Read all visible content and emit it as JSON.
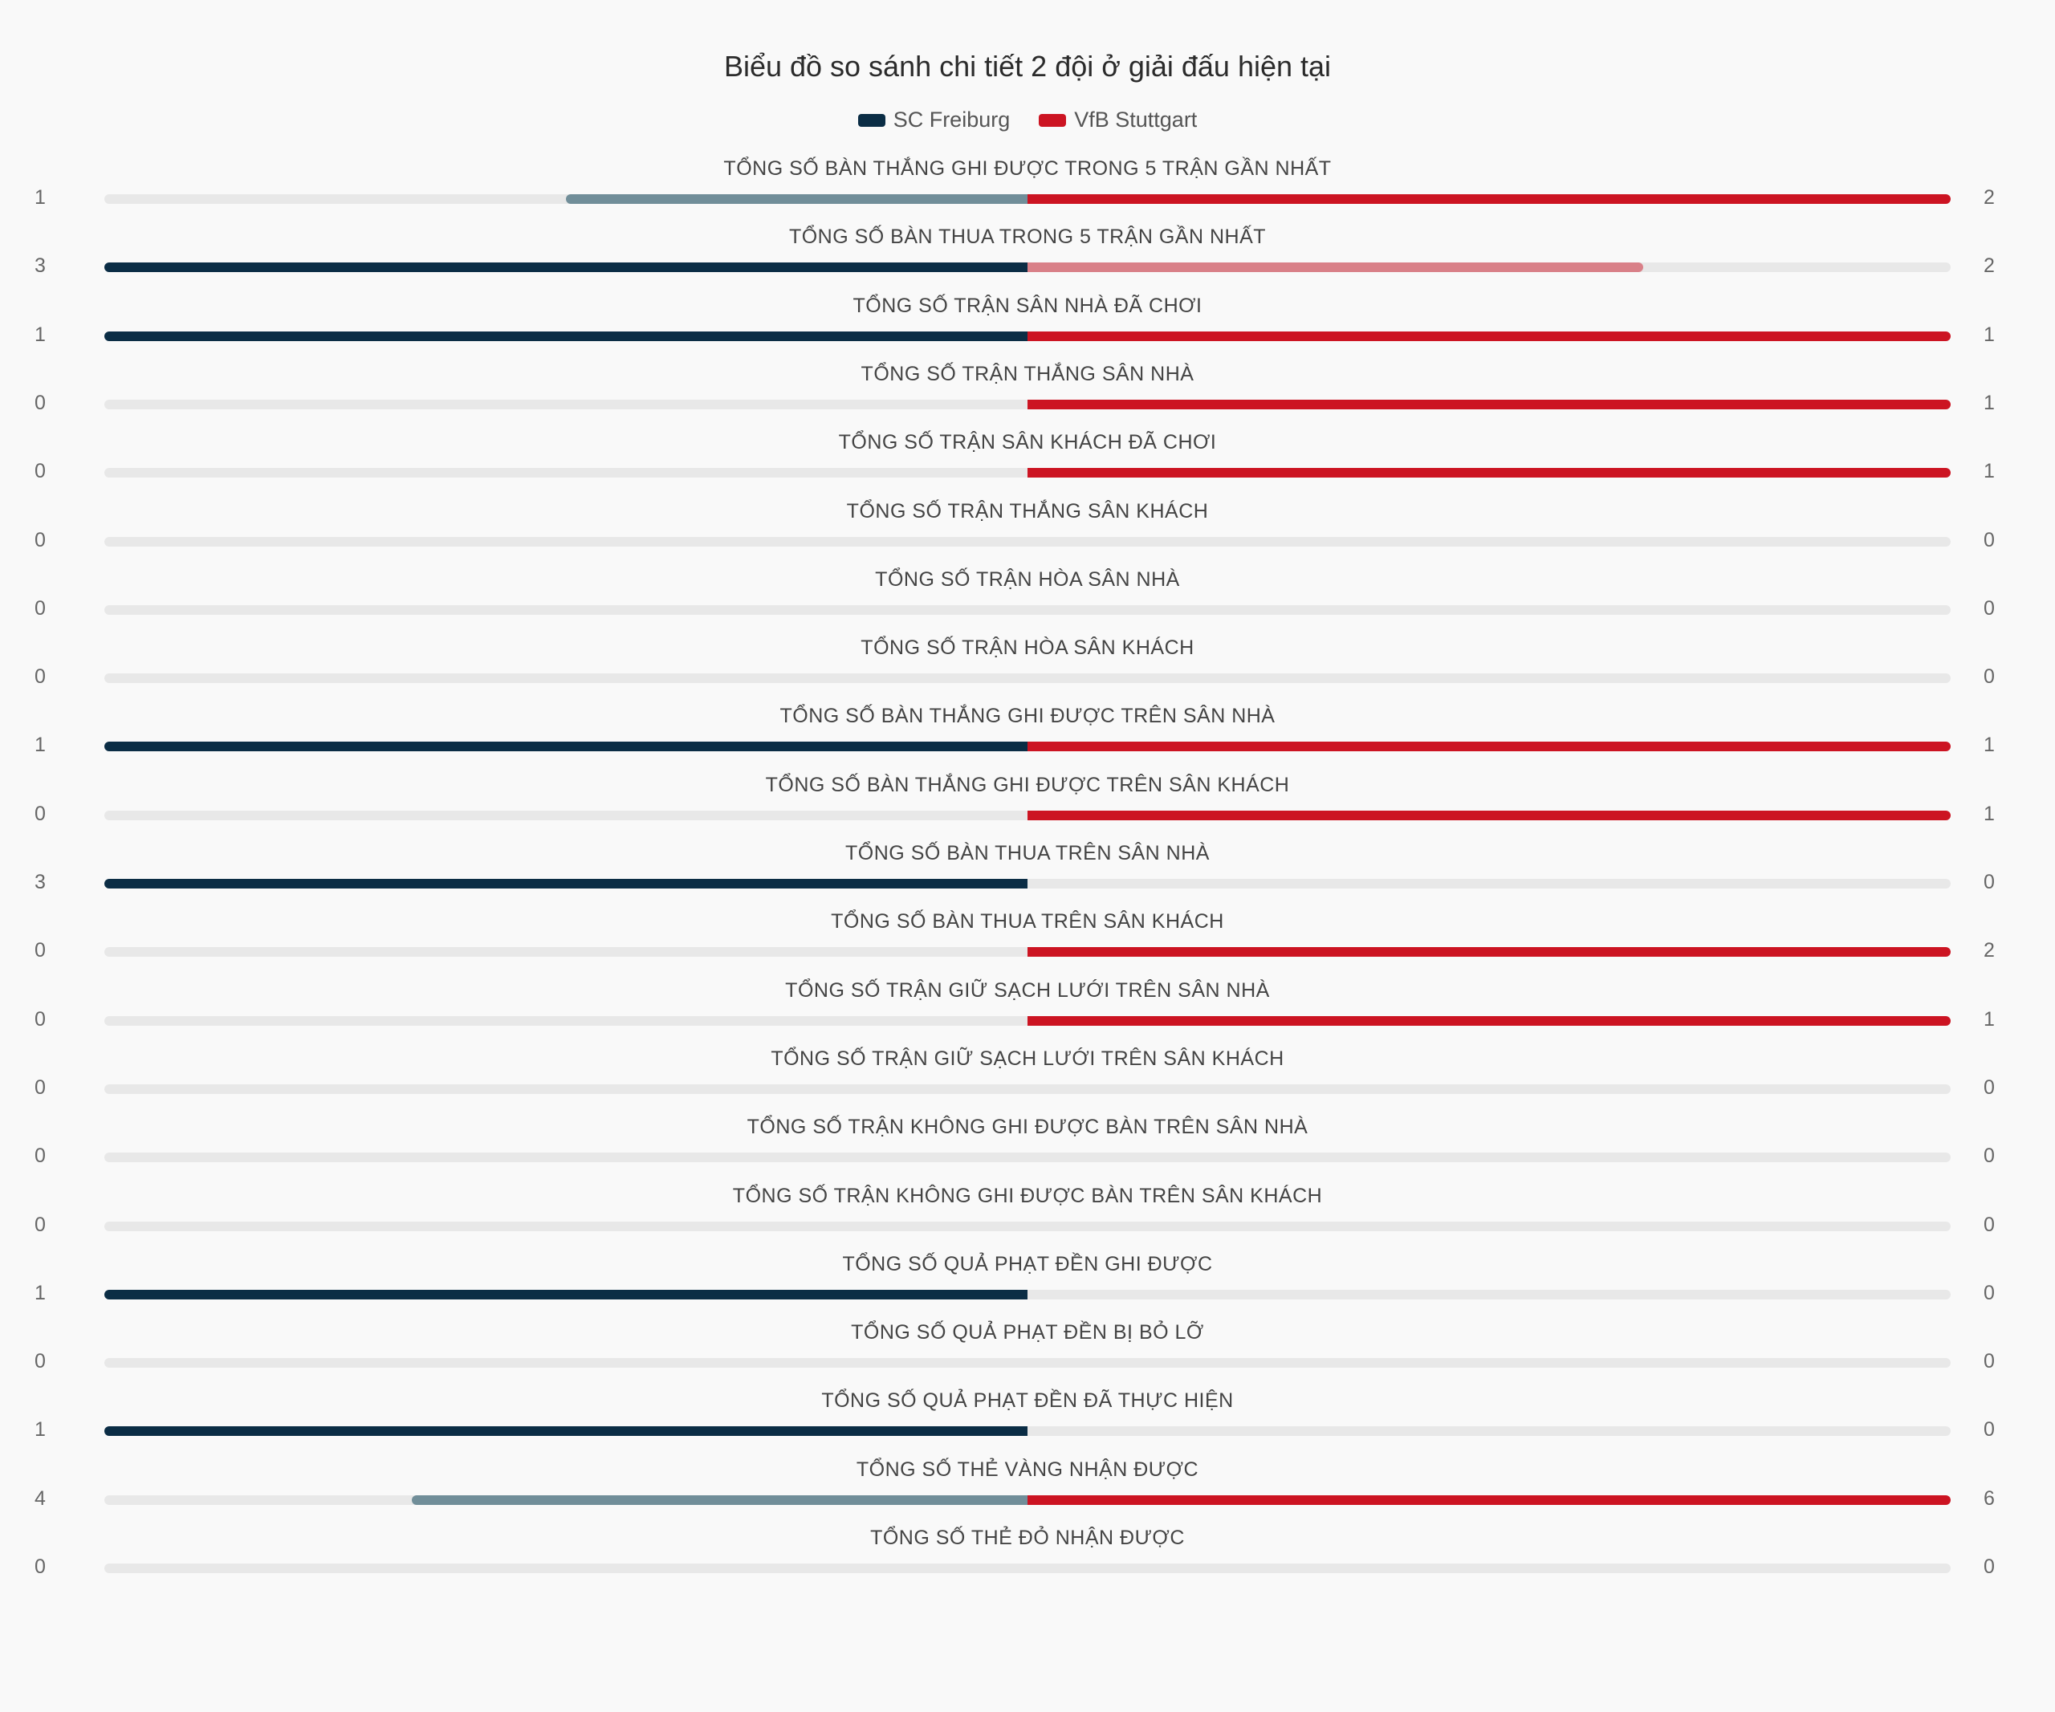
{
  "title": "Biểu đồ so sánh chi tiết 2 đội ở giải đấu hiện tại",
  "colors": {
    "home": "#0b2d45",
    "home_light": "#718e99",
    "away": "#cc1422",
    "away_light": "#d98088",
    "track": "#e8e8e8"
  },
  "legend": [
    {
      "name": "SC Freiburg",
      "color": "#0b2d45"
    },
    {
      "name": "VfB Stuttgart",
      "color": "#cc1422"
    }
  ],
  "chart_data": {
    "type": "bar",
    "title": "Biểu đồ so sánh chi tiết 2 đội ở giải đấu hiện tại",
    "legend_placement": "top-center",
    "series": [
      {
        "name": "SC Freiburg",
        "values": [
          1,
          3,
          1,
          0,
          0,
          0,
          0,
          0,
          1,
          0,
          3,
          0,
          0,
          0,
          0,
          0,
          1,
          0,
          1,
          4,
          0
        ]
      },
      {
        "name": "VfB Stuttgart",
        "values": [
          2,
          2,
          1,
          1,
          1,
          0,
          0,
          0,
          1,
          1,
          0,
          2,
          1,
          0,
          0,
          0,
          0,
          0,
          0,
          6,
          0
        ]
      }
    ],
    "categories": [
      "TỔNG SỐ BÀN THẮNG GHI ĐƯỢC TRONG 5 TRẬN GẦN NHẤT",
      "TỔNG SỐ BÀN THUA TRONG 5 TRẬN GẦN NHẤT",
      "TỔNG SỐ TRẬN SÂN NHÀ ĐÃ CHƠI",
      "TỔNG SỐ TRẬN THẮNG SÂN NHÀ",
      "TỔNG SỐ TRẬN SÂN KHÁCH ĐÃ CHƠI",
      "TỔNG SỐ TRẬN THẮNG SÂN KHÁCH",
      "TỔNG SỐ TRẬN HÒA SÂN NHÀ",
      "TỔNG SỐ TRẬN HÒA SÂN KHÁCH",
      "TỔNG SỐ BÀN THẮNG GHI ĐƯỢC TRÊN SÂN NHÀ",
      "TỔNG SỐ BÀN THẮNG GHI ĐƯỢC TRÊN SÂN KHÁCH",
      "TỔNG SỐ BÀN THUA TRÊN SÂN NHÀ",
      "TỔNG SỐ BÀN THUA TRÊN SÂN KHÁCH",
      "TỔNG SỐ TRẬN GIỮ SẠCH LƯỚI TRÊN SÂN NHÀ",
      "TỔNG SỐ TRẬN GIỮ SẠCH LƯỚI TRÊN SÂN KHÁCH",
      "TỔNG SỐ TRẬN KHÔNG GHI ĐƯỢC BÀN TRÊN SÂN NHÀ",
      "TỔNG SỐ TRẬN KHÔNG GHI ĐƯỢC BÀN TRÊN SÂN KHÁCH",
      "TỔNG SỐ QUẢ PHẠT ĐỀN GHI ĐƯỢC",
      "TỔNG SỐ QUẢ PHẠT ĐỀN BỊ BỎ LỠ",
      "TỔNG SỐ QUẢ PHẠT ĐỀN ĐÃ THỰC HIỆN",
      "TỔNG SỐ THẺ VÀNG NHẬN ĐƯỢC",
      "TỔNG SỐ THẺ ĐỎ NHẬN ĐƯỢC"
    ]
  }
}
